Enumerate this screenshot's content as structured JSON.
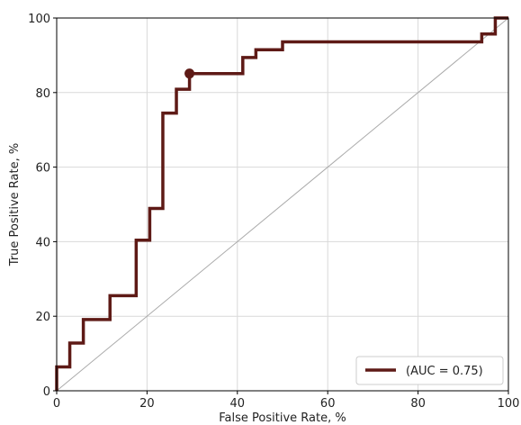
{
  "chart_data": {
    "type": "line",
    "xlabel": "False Positive Rate, %",
    "ylabel": "True Positive Rate, %",
    "xlim": [
      0,
      100
    ],
    "ylim": [
      0,
      100
    ],
    "x_ticks": [
      0,
      20,
      40,
      60,
      80,
      100
    ],
    "y_ticks": [
      0,
      20,
      40,
      60,
      80,
      100
    ],
    "x_tick_labels": [
      "0",
      "20",
      "40",
      "60",
      "80",
      "100"
    ],
    "y_tick_labels": [
      "0",
      "20",
      "40",
      "60",
      "80",
      "100"
    ],
    "grid": true,
    "legend_position": "lower-right",
    "series": [
      {
        "name": "(AUC = 0.75)",
        "color": "#5e1a16",
        "x": [
          0,
          0,
          2.9,
          2.9,
          5.9,
          5.9,
          11.8,
          11.8,
          17.6,
          17.6,
          20.6,
          20.6,
          23.5,
          23.5,
          26.5,
          26.5,
          29.4,
          29.4,
          41.2,
          41.2,
          44.1,
          44.1,
          50.0,
          50.0,
          94.1,
          94.1,
          97.1,
          97.1,
          100
        ],
        "y": [
          0,
          6.4,
          6.4,
          12.8,
          12.8,
          19.1,
          19.1,
          25.5,
          25.5,
          40.4,
          40.4,
          48.9,
          48.9,
          74.5,
          74.5,
          80.9,
          80.9,
          85.1,
          85.1,
          89.4,
          89.4,
          91.5,
          91.5,
          93.6,
          93.6,
          95.7,
          95.7,
          100,
          100
        ]
      },
      {
        "name": "",
        "color": "#aaaaaa",
        "style": "diagonal",
        "x": [
          0,
          100
        ],
        "y": [
          0,
          100
        ]
      }
    ],
    "marker": {
      "x": 29.4,
      "y": 85.1,
      "color": "#5e1a16"
    }
  }
}
